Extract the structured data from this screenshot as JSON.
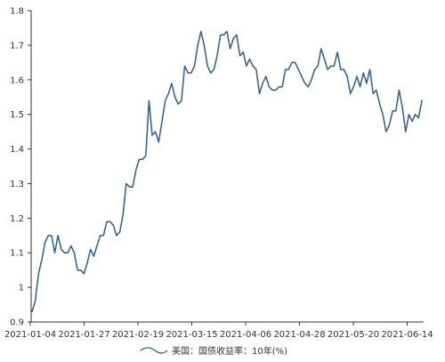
{
  "chart_data": {
    "type": "line",
    "title": "",
    "xlabel": "",
    "ylabel": "",
    "ylim": [
      0.9,
      1.8
    ],
    "ytick_labels": [
      "0.9",
      "1",
      "1.1",
      "1.2",
      "1.3",
      "1.4",
      "1.5",
      "1.6",
      "1.7",
      "1.8"
    ],
    "xtick_labels": [
      "2021-01-04",
      "2021-01-27",
      "2021-02-19",
      "2021-03-15",
      "2021-04-06",
      "2021-04-28",
      "2021-05-20",
      "2021-06-14"
    ],
    "grid": false,
    "legend_position": "bottom",
    "series": [
      {
        "name": "美国：国债收益率：10年(%)",
        "color": "#2e5f8a",
        "values": [
          0.93,
          0.96,
          1.04,
          1.08,
          1.13,
          1.15,
          1.15,
          1.1,
          1.15,
          1.11,
          1.1,
          1.1,
          1.12,
          1.1,
          1.05,
          1.05,
          1.04,
          1.07,
          1.11,
          1.09,
          1.12,
          1.15,
          1.15,
          1.19,
          1.19,
          1.18,
          1.15,
          1.16,
          1.21,
          1.3,
          1.29,
          1.29,
          1.34,
          1.37,
          1.37,
          1.38,
          1.54,
          1.44,
          1.45,
          1.42,
          1.48,
          1.54,
          1.56,
          1.59,
          1.55,
          1.53,
          1.54,
          1.64,
          1.62,
          1.62,
          1.64,
          1.7,
          1.74,
          1.7,
          1.64,
          1.62,
          1.63,
          1.67,
          1.73,
          1.73,
          1.74,
          1.69,
          1.72,
          1.73,
          1.67,
          1.68,
          1.64,
          1.66,
          1.64,
          1.63,
          1.56,
          1.59,
          1.61,
          1.58,
          1.57,
          1.57,
          1.58,
          1.58,
          1.63,
          1.63,
          1.65,
          1.65,
          1.63,
          1.61,
          1.59,
          1.58,
          1.6,
          1.63,
          1.64,
          1.69,
          1.66,
          1.63,
          1.64,
          1.64,
          1.68,
          1.63,
          1.63,
          1.61,
          1.56,
          1.58,
          1.61,
          1.58,
          1.62,
          1.59,
          1.63,
          1.56,
          1.57,
          1.53,
          1.5,
          1.45,
          1.47,
          1.51,
          1.51,
          1.57,
          1.52,
          1.45,
          1.5,
          1.48,
          1.5,
          1.49,
          1.54
        ]
      }
    ]
  }
}
